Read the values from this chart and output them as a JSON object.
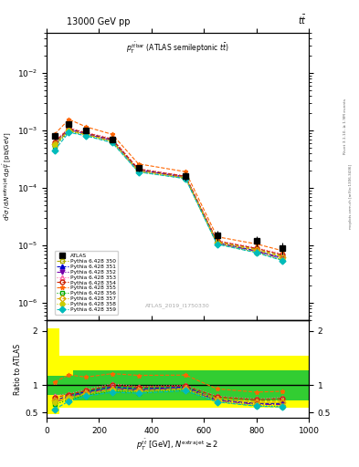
{
  "x_pts": [
    30,
    85,
    150,
    250,
    350,
    530,
    650,
    800,
    900
  ],
  "atlas_y": [
    0.0008,
    0.0013,
    0.001,
    0.0007,
    0.00022,
    0.00016,
    1.5e-05,
    1.2e-05,
    9e-06
  ],
  "atlas_err": [
    0.0001,
    0.00015,
    0.00012,
    9e-05,
    3e-05,
    2.5e-05,
    3e-06,
    2.5e-06,
    2e-06
  ],
  "series": [
    {
      "label": "Pythia 6.428 350",
      "color": "#aaaa00",
      "marker": "s",
      "fillstyle": "none",
      "linestyle": "--",
      "y": [
        0.00055,
        0.00098,
        0.00085,
        0.00065,
        0.0002,
        0.00015,
        1.15e-05,
        8.5e-06,
        6.5e-06
      ]
    },
    {
      "label": "Pythia 6.428 351",
      "color": "#0000cc",
      "marker": "^",
      "fillstyle": "full",
      "linestyle": "--",
      "y": [
        0.00058,
        0.00105,
        0.00088,
        0.00068,
        0.000205,
        0.000155,
        1.1e-05,
        8e-06,
        6e-06
      ]
    },
    {
      "label": "Pythia 6.428 352",
      "color": "#7700aa",
      "marker": "v",
      "fillstyle": "full",
      "linestyle": "-.",
      "y": [
        0.00055,
        0.00102,
        0.00086,
        0.00066,
        0.0002,
        0.000152,
        1.08e-05,
        7.8e-06,
        5.8e-06
      ]
    },
    {
      "label": "Pythia 6.428 353",
      "color": "#ff66aa",
      "marker": "^",
      "fillstyle": "none",
      "linestyle": ":",
      "y": [
        0.00065,
        0.0011,
        0.00092,
        0.00072,
        0.000215,
        0.00016,
        1.2e-05,
        9e-06,
        7e-06
      ]
    },
    {
      "label": "Pythia 6.428 354",
      "color": "#cc2200",
      "marker": "o",
      "fillstyle": "none",
      "linestyle": "--",
      "y": [
        0.00062,
        0.00108,
        0.0009,
        0.0007,
        0.000212,
        0.000158,
        1.18e-05,
        8.8e-06,
        6.8e-06
      ]
    },
    {
      "label": "Pythia 6.428 355",
      "color": "#ff6600",
      "marker": "*",
      "fillstyle": "full",
      "linestyle": "--",
      "y": [
        0.00085,
        0.00155,
        0.00115,
        0.00085,
        0.00026,
        0.00019,
        1.4e-05,
        1.05e-05,
        8e-06
      ]
    },
    {
      "label": "Pythia 6.428 356",
      "color": "#00aa00",
      "marker": "s",
      "fillstyle": "none",
      "linestyle": ":",
      "y": [
        0.00052,
        0.00095,
        0.00082,
        0.00062,
        0.00019,
        0.000145,
        1.05e-05,
        7.5e-06,
        5.5e-06
      ]
    },
    {
      "label": "Pythia 6.428 357",
      "color": "#ddaa00",
      "marker": "D",
      "fillstyle": "none",
      "linestyle": "--",
      "y": [
        0.00058,
        0.001,
        0.00085,
        0.00065,
        0.000198,
        0.00015,
        1.12e-05,
        8.2e-06,
        6.2e-06
      ]
    },
    {
      "label": "Pythia 6.428 358",
      "color": "#cccc00",
      "marker": "o",
      "fillstyle": "full",
      "linestyle": ":",
      "y": [
        0.00055,
        0.00098,
        0.00083,
        0.00063,
        0.000192,
        0.000146,
        1.06e-05,
        7.6e-06,
        5.6e-06
      ]
    },
    {
      "label": "Pythia 6.428 359",
      "color": "#00bbbb",
      "marker": "D",
      "fillstyle": "full",
      "linestyle": "--",
      "y": [
        0.00045,
        0.00092,
        0.0008,
        0.00061,
        0.000188,
        0.000144,
        1.04e-05,
        7.4e-06,
        5.4e-06
      ]
    }
  ],
  "yellow_band": {
    "steps_x": [
      0,
      50,
      50,
      200,
      200,
      600,
      600,
      1000
    ],
    "steps_lo": [
      0.47,
      0.47,
      0.58,
      0.58,
      0.58,
      0.58,
      0.58,
      0.58
    ],
    "steps_hi": [
      2.05,
      2.05,
      1.55,
      1.55,
      1.55,
      1.55,
      1.55,
      1.55
    ]
  },
  "green_band": {
    "steps_x": [
      0,
      100,
      100,
      400,
      400,
      600,
      600,
      1000
    ],
    "steps_lo": [
      0.82,
      0.82,
      0.72,
      0.72,
      0.72,
      0.72,
      0.72,
      0.72
    ],
    "steps_hi": [
      1.18,
      1.18,
      1.28,
      1.28,
      1.28,
      1.28,
      1.28,
      1.28
    ]
  },
  "xlim": [
    0,
    1000
  ],
  "ylim_main": [
    5e-07,
    0.05
  ],
  "ylim_ratio": [
    0.4,
    2.2
  ],
  "ratio_yticks": [
    0.5,
    1.0,
    2.0
  ],
  "xticks": [
    0,
    200,
    400,
    600,
    800,
    1000
  ]
}
